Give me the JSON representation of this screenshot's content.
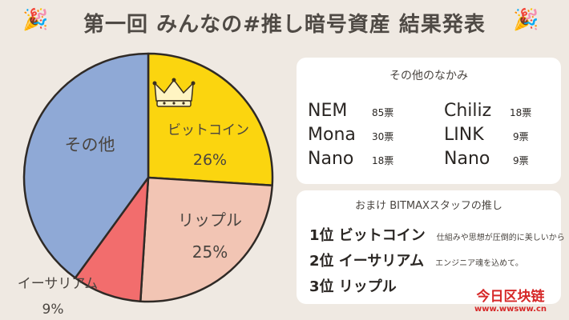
{
  "header": {
    "title": "第一回 みんなの#推し暗号資産 結果発表",
    "left_icon": "party-popper-icon",
    "right_icon": "party-popper-icon"
  },
  "chart_data": {
    "type": "pie",
    "title": "第一回 みんなの#推し暗号資産 結果発表",
    "slices": [
      {
        "label": "ビットコイン",
        "value": 26,
        "display": "26%",
        "color": "#fbd50f"
      },
      {
        "label": "リップル",
        "value": 25,
        "display": "25%",
        "color": "#f2c5b4"
      },
      {
        "label": "イーサリアム",
        "value": 9,
        "display": "9%",
        "color": "#f26d6d"
      },
      {
        "label": "その他",
        "value": 40,
        "display": "",
        "color": "#8fa9d6"
      }
    ],
    "winner_icon": "crown-icon"
  },
  "others": {
    "title": "その他のなかみ",
    "items": [
      {
        "name": "NEM",
        "votes": "85票"
      },
      {
        "name": "Mona",
        "votes": "30票"
      },
      {
        "name": "Nano",
        "votes": "18票"
      },
      {
        "name": "Chiliz",
        "votes": "18票"
      },
      {
        "name": "LINK",
        "votes": "9票"
      },
      {
        "name": "Nano",
        "votes": "9票"
      }
    ]
  },
  "staff": {
    "title": "おまけ BITMAXスタッフの推し",
    "ranks": [
      {
        "label": "1位 ビットコイン",
        "comment": "仕組みや思想が圧倒的に美しいから"
      },
      {
        "label": "2位 イーサリアム",
        "comment": "エンジニア魂を込めて。"
      },
      {
        "label": "3位 リップル",
        "comment": ""
      }
    ]
  },
  "watermark": {
    "main": "今日区块链",
    "url": "www.wwsww.cn"
  }
}
